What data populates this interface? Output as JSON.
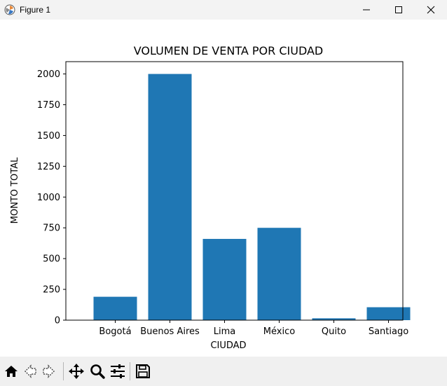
{
  "window": {
    "title": "Figure 1"
  },
  "toolbar": {
    "buttons": [
      {
        "name": "home-button",
        "icon": "home-icon"
      },
      {
        "name": "back-button",
        "icon": "back-arrow-icon"
      },
      {
        "name": "forward-button",
        "icon": "forward-arrow-icon"
      },
      {
        "name": "pan-button",
        "icon": "move-icon"
      },
      {
        "name": "zoom-button",
        "icon": "magnifier-icon"
      },
      {
        "name": "subplots-button",
        "icon": "sliders-icon"
      },
      {
        "name": "save-button",
        "icon": "floppy-disk-icon"
      }
    ]
  },
  "chart_data": {
    "type": "bar",
    "title": "VOLUMEN DE VENTA POR CIUDAD",
    "xlabel": "CIUDAD",
    "ylabel": "MONTO TOTAL",
    "categories": [
      "Bogotá",
      "Buenos Aires",
      "Lima",
      "México",
      "Quito",
      "Santiago"
    ],
    "values": [
      190,
      2000,
      660,
      750,
      15,
      105
    ],
    "ylim": [
      0,
      2100
    ],
    "yticks": [
      0,
      250,
      500,
      750,
      1000,
      1250,
      1500,
      1750,
      2000
    ],
    "bar_color": "#1f77b4",
    "grid": false,
    "legend": "none"
  }
}
